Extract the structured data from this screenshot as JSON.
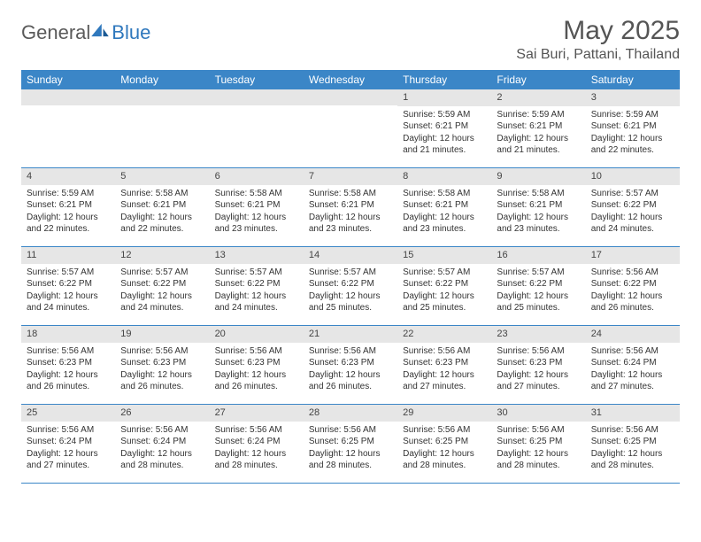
{
  "logo": {
    "text1": "General",
    "text2": "Blue"
  },
  "title": "May 2025",
  "location": "Sai Buri, Pattani, Thailand",
  "colors": {
    "header_bg": "#3b86c7",
    "header_text": "#ffffff",
    "daynum_bg": "#e6e6e6",
    "border": "#3b86c7",
    "logo_gray": "#5a5a5a",
    "logo_blue": "#2f78bd",
    "body_text": "#333333",
    "title_text": "#555555"
  },
  "day_labels": [
    "Sunday",
    "Monday",
    "Tuesday",
    "Wednesday",
    "Thursday",
    "Friday",
    "Saturday"
  ],
  "weeks": [
    [
      {
        "empty": true
      },
      {
        "empty": true
      },
      {
        "empty": true
      },
      {
        "empty": true
      },
      {
        "num": "1",
        "sunrise": "Sunrise: 5:59 AM",
        "sunset": "Sunset: 6:21 PM",
        "daylight": "Daylight: 12 hours and 21 minutes."
      },
      {
        "num": "2",
        "sunrise": "Sunrise: 5:59 AM",
        "sunset": "Sunset: 6:21 PM",
        "daylight": "Daylight: 12 hours and 21 minutes."
      },
      {
        "num": "3",
        "sunrise": "Sunrise: 5:59 AM",
        "sunset": "Sunset: 6:21 PM",
        "daylight": "Daylight: 12 hours and 22 minutes."
      }
    ],
    [
      {
        "num": "4",
        "sunrise": "Sunrise: 5:59 AM",
        "sunset": "Sunset: 6:21 PM",
        "daylight": "Daylight: 12 hours and 22 minutes."
      },
      {
        "num": "5",
        "sunrise": "Sunrise: 5:58 AM",
        "sunset": "Sunset: 6:21 PM",
        "daylight": "Daylight: 12 hours and 22 minutes."
      },
      {
        "num": "6",
        "sunrise": "Sunrise: 5:58 AM",
        "sunset": "Sunset: 6:21 PM",
        "daylight": "Daylight: 12 hours and 23 minutes."
      },
      {
        "num": "7",
        "sunrise": "Sunrise: 5:58 AM",
        "sunset": "Sunset: 6:21 PM",
        "daylight": "Daylight: 12 hours and 23 minutes."
      },
      {
        "num": "8",
        "sunrise": "Sunrise: 5:58 AM",
        "sunset": "Sunset: 6:21 PM",
        "daylight": "Daylight: 12 hours and 23 minutes."
      },
      {
        "num": "9",
        "sunrise": "Sunrise: 5:58 AM",
        "sunset": "Sunset: 6:21 PM",
        "daylight": "Daylight: 12 hours and 23 minutes."
      },
      {
        "num": "10",
        "sunrise": "Sunrise: 5:57 AM",
        "sunset": "Sunset: 6:22 PM",
        "daylight": "Daylight: 12 hours and 24 minutes."
      }
    ],
    [
      {
        "num": "11",
        "sunrise": "Sunrise: 5:57 AM",
        "sunset": "Sunset: 6:22 PM",
        "daylight": "Daylight: 12 hours and 24 minutes."
      },
      {
        "num": "12",
        "sunrise": "Sunrise: 5:57 AM",
        "sunset": "Sunset: 6:22 PM",
        "daylight": "Daylight: 12 hours and 24 minutes."
      },
      {
        "num": "13",
        "sunrise": "Sunrise: 5:57 AM",
        "sunset": "Sunset: 6:22 PM",
        "daylight": "Daylight: 12 hours and 24 minutes."
      },
      {
        "num": "14",
        "sunrise": "Sunrise: 5:57 AM",
        "sunset": "Sunset: 6:22 PM",
        "daylight": "Daylight: 12 hours and 25 minutes."
      },
      {
        "num": "15",
        "sunrise": "Sunrise: 5:57 AM",
        "sunset": "Sunset: 6:22 PM",
        "daylight": "Daylight: 12 hours and 25 minutes."
      },
      {
        "num": "16",
        "sunrise": "Sunrise: 5:57 AM",
        "sunset": "Sunset: 6:22 PM",
        "daylight": "Daylight: 12 hours and 25 minutes."
      },
      {
        "num": "17",
        "sunrise": "Sunrise: 5:56 AM",
        "sunset": "Sunset: 6:22 PM",
        "daylight": "Daylight: 12 hours and 26 minutes."
      }
    ],
    [
      {
        "num": "18",
        "sunrise": "Sunrise: 5:56 AM",
        "sunset": "Sunset: 6:23 PM",
        "daylight": "Daylight: 12 hours and 26 minutes."
      },
      {
        "num": "19",
        "sunrise": "Sunrise: 5:56 AM",
        "sunset": "Sunset: 6:23 PM",
        "daylight": "Daylight: 12 hours and 26 minutes."
      },
      {
        "num": "20",
        "sunrise": "Sunrise: 5:56 AM",
        "sunset": "Sunset: 6:23 PM",
        "daylight": "Daylight: 12 hours and 26 minutes."
      },
      {
        "num": "21",
        "sunrise": "Sunrise: 5:56 AM",
        "sunset": "Sunset: 6:23 PM",
        "daylight": "Daylight: 12 hours and 26 minutes."
      },
      {
        "num": "22",
        "sunrise": "Sunrise: 5:56 AM",
        "sunset": "Sunset: 6:23 PM",
        "daylight": "Daylight: 12 hours and 27 minutes."
      },
      {
        "num": "23",
        "sunrise": "Sunrise: 5:56 AM",
        "sunset": "Sunset: 6:23 PM",
        "daylight": "Daylight: 12 hours and 27 minutes."
      },
      {
        "num": "24",
        "sunrise": "Sunrise: 5:56 AM",
        "sunset": "Sunset: 6:24 PM",
        "daylight": "Daylight: 12 hours and 27 minutes."
      }
    ],
    [
      {
        "num": "25",
        "sunrise": "Sunrise: 5:56 AM",
        "sunset": "Sunset: 6:24 PM",
        "daylight": "Daylight: 12 hours and 27 minutes."
      },
      {
        "num": "26",
        "sunrise": "Sunrise: 5:56 AM",
        "sunset": "Sunset: 6:24 PM",
        "daylight": "Daylight: 12 hours and 28 minutes."
      },
      {
        "num": "27",
        "sunrise": "Sunrise: 5:56 AM",
        "sunset": "Sunset: 6:24 PM",
        "daylight": "Daylight: 12 hours and 28 minutes."
      },
      {
        "num": "28",
        "sunrise": "Sunrise: 5:56 AM",
        "sunset": "Sunset: 6:25 PM",
        "daylight": "Daylight: 12 hours and 28 minutes."
      },
      {
        "num": "29",
        "sunrise": "Sunrise: 5:56 AM",
        "sunset": "Sunset: 6:25 PM",
        "daylight": "Daylight: 12 hours and 28 minutes."
      },
      {
        "num": "30",
        "sunrise": "Sunrise: 5:56 AM",
        "sunset": "Sunset: 6:25 PM",
        "daylight": "Daylight: 12 hours and 28 minutes."
      },
      {
        "num": "31",
        "sunrise": "Sunrise: 5:56 AM",
        "sunset": "Sunset: 6:25 PM",
        "daylight": "Daylight: 12 hours and 28 minutes."
      }
    ]
  ]
}
